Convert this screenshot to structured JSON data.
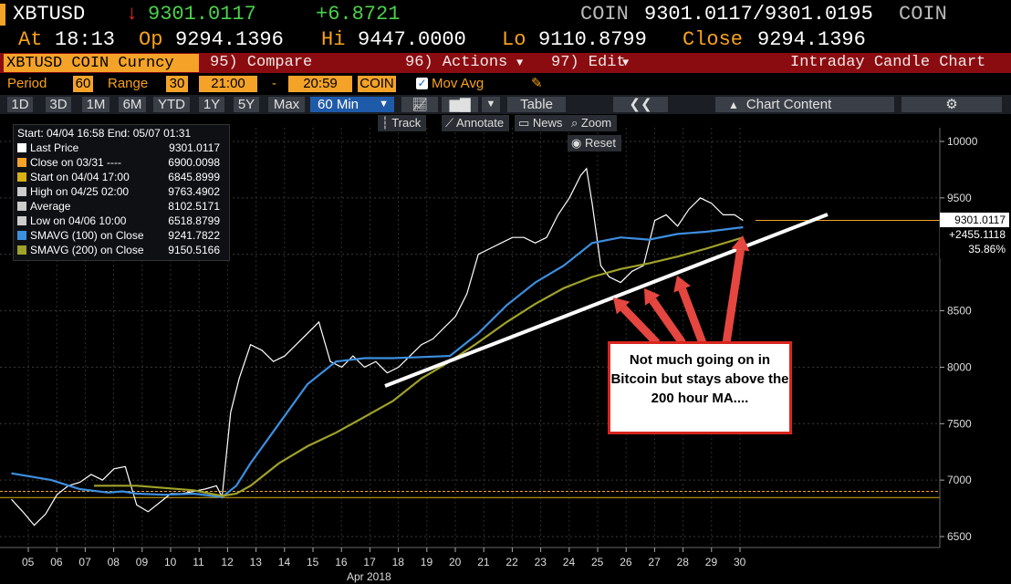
{
  "quote": {
    "symbol": "XBTUSD",
    "arrow": "↓",
    "last": "9301.0117",
    "change": "+6.8721",
    "source_label": "COIN",
    "bid_ask": "9301.0117/9301.0195",
    "source_label2": "COIN"
  },
  "stats": {
    "at_label": "At",
    "at_value": "18:13",
    "op_label": "Op",
    "op_value": "9294.1396",
    "hi_label": "Hi",
    "hi_value": "9447.0000",
    "lo_label": "Lo",
    "lo_value": "9110.8799",
    "close_label": "Close",
    "close_value": "9294.1396"
  },
  "menubar": {
    "ticker": "XBTUSD COIN Curncy",
    "compare": "95) Compare",
    "actions": "96) Actions",
    "edit": "97) Edit",
    "title": "Intraday Candle Chart"
  },
  "settings": {
    "period_label": "Period",
    "period_value": "60",
    "range_label": "Range",
    "range_value": "30",
    "start_time": "21:00",
    "dash": "-",
    "end_time": "20:59",
    "source": "COIN",
    "movavg_label": "Mov Avg"
  },
  "ranges": [
    "1D",
    "3D",
    "1M",
    "6M",
    "YTD",
    "1Y",
    "5Y",
    "Max"
  ],
  "interval": "60 Min",
  "table_label": "Table",
  "chart_content_label": "Chart Content",
  "tools": {
    "track": "Track",
    "annotate": "Annotate",
    "news": "News",
    "zoom": "Zoom",
    "reset": "Reset"
  },
  "legend": {
    "header": "Start: 04/04 16:58 End: 05/07 01:31",
    "rows": [
      {
        "label": "Last Price",
        "value": "9301.0117",
        "color": "#ffffff"
      },
      {
        "label": "Close on 03/31 ----",
        "value": "6900.0098",
        "color": "#f4a328"
      },
      {
        "label": "Start on 04/04 17:00",
        "value": "6845.8999",
        "color": "#d7b116"
      },
      {
        "label": "High on 04/25 02:00",
        "value": "9763.4902",
        "color": "#cccccc"
      },
      {
        "label": "Average",
        "value": "8102.5171",
        "color": "#cccccc"
      },
      {
        "label": "Low on 04/06 10:00",
        "value": "6518.8799",
        "color": "#cccccc"
      },
      {
        "label": "SMAVG (100) on Close",
        "value": "9241.7822",
        "color": "#3d8fe0"
      },
      {
        "label": "SMAVG (200) on Close",
        "value": "9150.5166",
        "color": "#a0a22a"
      }
    ]
  },
  "price_tag": {
    "price": "9301.0117",
    "change": "+2455.1118",
    "pct": "35.86%"
  },
  "annotation": "Not much going on in Bitcoin but stays above the 200 hour MA....",
  "chart_data": {
    "type": "line",
    "x_ticks": [
      "05",
      "06",
      "07",
      "08",
      "09",
      "10",
      "11",
      "12",
      "13",
      "14",
      "15",
      "16",
      "17",
      "18",
      "19",
      "20",
      "21",
      "22",
      "23",
      "24",
      "25",
      "26",
      "27",
      "28",
      "29",
      "30"
    ],
    "x_month_label": "Apr 2018",
    "y_ticks": [
      6500,
      7000,
      7500,
      8000,
      8500,
      9000,
      9500,
      10000
    ],
    "ylim": [
      6400,
      10100
    ],
    "series": [
      {
        "name": "Last Price",
        "color": "#ffffff",
        "x": [
          4.6,
          5.0,
          5.4,
          5.8,
          6.2,
          6.6,
          7.0,
          7.4,
          7.8,
          8.2,
          8.6,
          9.0,
          9.4,
          9.8,
          10.2,
          10.6,
          11.0,
          11.4,
          11.8,
          12.0,
          12.3,
          12.6,
          13.0,
          13.4,
          13.8,
          14.2,
          14.6,
          15.0,
          15.4,
          15.8,
          16.2,
          16.6,
          17.0,
          17.4,
          17.8,
          18.2,
          18.6,
          19.0,
          19.4,
          19.8,
          20.2,
          20.6,
          21.0,
          21.4,
          21.8,
          22.2,
          22.6,
          23.0,
          23.4,
          23.8,
          24.2,
          24.6,
          24.8,
          25.0,
          25.3,
          25.6,
          26.0,
          26.4,
          26.8,
          27.2,
          27.6,
          28.0,
          28.4,
          28.8,
          29.2,
          29.6,
          30.0,
          30.3
        ],
        "y": [
          6830,
          6720,
          6600,
          6700,
          6870,
          6950,
          6980,
          7050,
          7000,
          7100,
          7120,
          6780,
          6720,
          6800,
          6880,
          6880,
          6900,
          6920,
          6950,
          6850,
          7600,
          7900,
          8200,
          8150,
          8050,
          8100,
          8200,
          8300,
          8400,
          8050,
          8000,
          8100,
          8000,
          8050,
          7950,
          8000,
          8100,
          8200,
          8250,
          8350,
          8450,
          8650,
          9000,
          9050,
          9100,
          9150,
          9150,
          9100,
          9150,
          9350,
          9500,
          9700,
          9760,
          9450,
          8900,
          8800,
          8750,
          8850,
          8900,
          9300,
          9350,
          9250,
          9400,
          9500,
          9450,
          9350,
          9350,
          9300
        ]
      },
      {
        "name": "SMAVG (100) on Close",
        "color": "#3d8fe0",
        "x": [
          4.6,
          6.0,
          7.0,
          8.0,
          8.5,
          9.0,
          10.0,
          11.0,
          12.0,
          12.5,
          13.0,
          14.0,
          15.0,
          16.0,
          17.0,
          18.0,
          19.0,
          20.0,
          21.0,
          22.0,
          23.0,
          24.0,
          24.5,
          25.0,
          26.0,
          27.0,
          28.0,
          29.0,
          30.3
        ],
        "y": [
          7060,
          7000,
          6920,
          6890,
          6900,
          6880,
          6870,
          6880,
          6850,
          6950,
          7150,
          7500,
          7850,
          8050,
          8080,
          8080,
          8090,
          8100,
          8300,
          8550,
          8750,
          8900,
          9000,
          9100,
          9150,
          9130,
          9180,
          9200,
          9240
        ]
      },
      {
        "name": "SMAVG (200) on Close",
        "color": "#a0a22a",
        "x": [
          7.5,
          9.0,
          10.0,
          11.0,
          12.0,
          12.5,
          13.0,
          14.0,
          15.0,
          16.0,
          17.0,
          18.0,
          19.0,
          20.0,
          21.0,
          22.0,
          23.0,
          24.0,
          25.0,
          26.0,
          27.0,
          28.0,
          29.0,
          30.3
        ],
        "y": [
          6950,
          6950,
          6930,
          6910,
          6860,
          6880,
          6950,
          7150,
          7300,
          7420,
          7560,
          7700,
          7900,
          8050,
          8220,
          8400,
          8560,
          8700,
          8800,
          8870,
          8920,
          8980,
          9050,
          9150
        ]
      }
    ]
  }
}
